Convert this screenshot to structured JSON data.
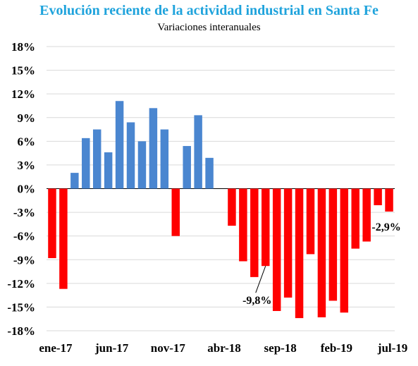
{
  "chart_data": {
    "type": "bar",
    "title": "Evolución reciente de la actividad industrial en Santa Fe",
    "subtitle": "Variaciones interanuales",
    "xlabel": "",
    "ylabel": "",
    "ylim": [
      -18,
      18
    ],
    "y_ticks": [
      18,
      15,
      12,
      9,
      6,
      3,
      0,
      -3,
      -6,
      -9,
      -12,
      -15,
      -18
    ],
    "y_tick_labels": [
      "18%",
      "15%",
      "12%",
      "9%",
      "6%",
      "3%",
      "0%",
      "-3%",
      "-6%",
      "-9%",
      "-12%",
      "-15%",
      "-18%"
    ],
    "x_tick_labels": [
      "ene-17",
      "jun-17",
      "nov-17",
      "abr-18",
      "sep-18",
      "feb-19",
      "jul-19"
    ],
    "x_tick_category_index": [
      0,
      5,
      10,
      15,
      20,
      25,
      30
    ],
    "categories": [
      "ene-17",
      "feb-17",
      "mar-17",
      "abr-17",
      "may-17",
      "jun-17",
      "jul-17",
      "ago-17",
      "sep-17",
      "oct-17",
      "nov-17",
      "dic-17",
      "ene-18",
      "feb-18",
      "mar-18",
      "abr-18",
      "may-18",
      "jun-18",
      "jul-18",
      "ago-18",
      "sep-18",
      "oct-18",
      "nov-18",
      "dic-18",
      "ene-19",
      "feb-19",
      "mar-19",
      "abr-19",
      "may-19",
      "jun-19",
      "jul-19"
    ],
    "values": [
      -8.8,
      -12.7,
      2.0,
      6.4,
      7.5,
      4.6,
      11.1,
      8.4,
      6.0,
      10.2,
      7.5,
      -6.0,
      5.4,
      9.3,
      3.9,
      null,
      -4.7,
      -9.2,
      -11.2,
      -9.8,
      -15.5,
      -13.8,
      -16.4,
      -8.3,
      -16.3,
      -14.2,
      -15.7,
      -7.6,
      -6.7,
      -2.1,
      -2.9
    ],
    "grid": true,
    "colors": {
      "positive": "#4a86d0",
      "negative": "#ff0000",
      "grid": "#d9d9d9",
      "axis": "#000000"
    },
    "annotations": [
      {
        "category_index": 19,
        "text": "-9,8%"
      },
      {
        "category_index": 30,
        "text": "-2,9%"
      }
    ]
  }
}
